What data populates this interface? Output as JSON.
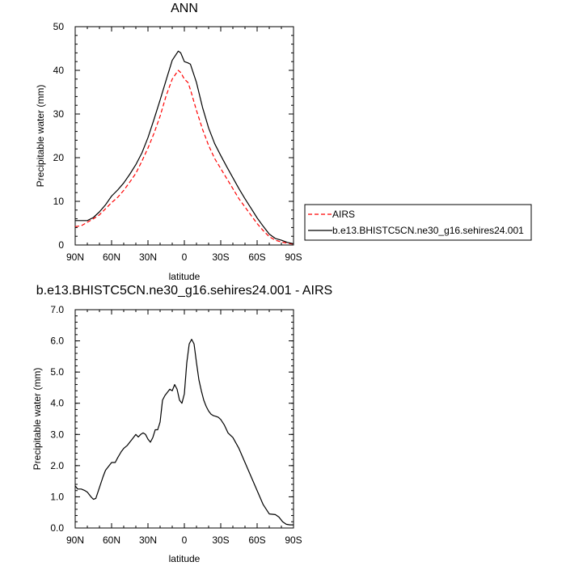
{
  "chart_data": [
    {
      "type": "line",
      "title": "ANN",
      "xlabel": "latitude",
      "ylabel": "Precipitable water (mm)",
      "xlim": [
        -90,
        90
      ],
      "ylim": [
        0,
        50
      ],
      "x_ticks": [
        "90N",
        "60N",
        "30N",
        "0",
        "30S",
        "60S",
        "90S"
      ],
      "y_ticks": [
        "0",
        "10",
        "20",
        "30",
        "40",
        "50"
      ],
      "x_tick_values": [
        -90,
        -60,
        -30,
        0,
        30,
        60,
        90
      ],
      "y_tick_values": [
        0,
        10,
        20,
        30,
        40,
        50
      ],
      "legend_position": "right",
      "series": [
        {
          "name": "AIRS",
          "color": "#ff0000",
          "dash": true,
          "x": [
            -90,
            -85,
            -80,
            -75,
            -70,
            -65,
            -60,
            -55,
            -50,
            -45,
            -40,
            -35,
            -30,
            -25,
            -20,
            -15,
            -10,
            -5,
            -3,
            0,
            3,
            5,
            10,
            15,
            20,
            25,
            30,
            35,
            40,
            45,
            50,
            55,
            60,
            65,
            70,
            75,
            80,
            85,
            90
          ],
          "y": [
            4.2,
            4.4,
            5.2,
            6.0,
            6.9,
            8.3,
            9.7,
            10.9,
            12.5,
            14.4,
            16.4,
            19.2,
            22.2,
            25.6,
            29.5,
            34.2,
            38.0,
            40.0,
            39.5,
            38.0,
            37.2,
            35.6,
            30.8,
            26.5,
            22.8,
            19.8,
            17.5,
            15.2,
            12.9,
            10.6,
            8.7,
            6.8,
            4.9,
            3.3,
            1.9,
            1.1,
            0.7,
            0.4,
            0.2
          ]
        },
        {
          "name": "b.e13.BHISTC5CN.ne30_g16.sehires24.001",
          "color": "#000000",
          "dash": false,
          "x": [
            -90,
            -85,
            -80,
            -75,
            -70,
            -65,
            -60,
            -55,
            -50,
            -45,
            -40,
            -35,
            -30,
            -25,
            -20,
            -15,
            -10,
            -5,
            -3,
            0,
            3,
            5,
            10,
            15,
            20,
            25,
            30,
            35,
            40,
            45,
            50,
            55,
            60,
            65,
            70,
            75,
            80,
            85,
            90
          ],
          "y": [
            5.6,
            5.6,
            5.6,
            6.3,
            7.6,
            9.2,
            11.2,
            12.6,
            14.2,
            16.2,
            18.4,
            21.1,
            24.6,
            28.8,
            33.2,
            37.8,
            42.3,
            44.4,
            44.0,
            42.0,
            41.7,
            41.4,
            37.2,
            31.5,
            26.8,
            23.2,
            20.5,
            17.9,
            15.4,
            12.9,
            10.6,
            8.4,
            6.2,
            4.3,
            2.5,
            1.5,
            1.1,
            0.6,
            0.3
          ]
        }
      ]
    },
    {
      "type": "line",
      "title": "b.e13.BHISTC5CN.ne30_g16.sehires24.001 - AIRS",
      "xlabel": "latitude",
      "ylabel": "Precipitable water (mm)",
      "xlim": [
        -90,
        90
      ],
      "ylim": [
        0,
        7
      ],
      "x_ticks": [
        "90N",
        "60N",
        "30N",
        "0",
        "30S",
        "60S",
        "90S"
      ],
      "y_ticks": [
        "0.0",
        "1.0",
        "2.0",
        "3.0",
        "4.0",
        "5.0",
        "6.0",
        "7.0"
      ],
      "x_tick_values": [
        -90,
        -60,
        -30,
        0,
        30,
        60,
        90
      ],
      "y_tick_values": [
        0,
        1,
        2,
        3,
        4,
        5,
        6,
        7
      ],
      "series": [
        {
          "color": "#000000",
          "dash": false,
          "x": [
            -90,
            -88,
            -85,
            -82,
            -80,
            -77,
            -75,
            -73,
            -70,
            -67,
            -65,
            -62,
            -60,
            -57,
            -55,
            -52,
            -50,
            -47,
            -45,
            -43,
            -40,
            -38,
            -36,
            -34,
            -32,
            -30,
            -28,
            -26,
            -24,
            -22,
            -20,
            -18,
            -16,
            -14,
            -12,
            -10,
            -8,
            -6,
            -4,
            -2,
            0,
            2,
            4,
            6,
            8,
            10,
            12,
            14,
            16,
            18,
            20,
            22,
            24,
            26,
            28,
            30,
            33,
            36,
            40,
            45,
            50,
            55,
            60,
            65,
            70,
            75,
            78,
            81,
            84,
            87,
            90
          ],
          "y": [
            1.35,
            1.25,
            1.25,
            1.2,
            1.15,
            1.0,
            0.92,
            0.95,
            1.3,
            1.65,
            1.85,
            2.0,
            2.1,
            2.1,
            2.25,
            2.45,
            2.55,
            2.65,
            2.75,
            2.85,
            3.0,
            2.92,
            3.0,
            3.05,
            3.0,
            2.85,
            2.75,
            2.9,
            3.15,
            3.15,
            3.4,
            4.1,
            4.25,
            4.35,
            4.45,
            4.4,
            4.6,
            4.45,
            4.1,
            4.0,
            4.3,
            5.3,
            5.9,
            6.05,
            5.9,
            5.3,
            4.75,
            4.4,
            4.1,
            3.9,
            3.75,
            3.65,
            3.6,
            3.58,
            3.55,
            3.48,
            3.3,
            3.05,
            2.9,
            2.55,
            2.1,
            1.65,
            1.2,
            0.75,
            0.45,
            0.43,
            0.35,
            0.2,
            0.12,
            0.1,
            0.1
          ]
        }
      ]
    }
  ]
}
